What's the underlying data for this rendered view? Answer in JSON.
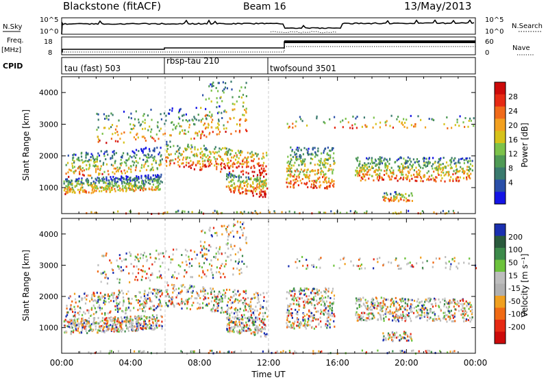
{
  "header": {
    "radar_title": "Blackstone (fitACF)",
    "beam_label": "Beam 16",
    "date_label": "13/May/2013"
  },
  "top_panels": {
    "nsky_label": "N.Sky",
    "nsearch_label": "N.Search",
    "freq_label_1": "Freq.",
    "freq_label_2": "[MHz]",
    "nave_label": "Nave",
    "cpid_label": "CPID",
    "noise_ticks_left": [
      "10^5",
      "10^0"
    ],
    "noise_ticks_right": [
      "10^5",
      "10^0"
    ],
    "freq_ticks": [
      "18",
      "8"
    ],
    "nave_ticks": [
      "60",
      "0"
    ]
  },
  "cpid_segments": [
    {
      "label": "tau (fast) 503",
      "start_hour": 0
    },
    {
      "label": "rbsp-tau 210",
      "start_hour": 6
    },
    {
      "label": "twofsound 3501",
      "start_hour": 12
    }
  ],
  "chart_data": [
    {
      "type": "heatmap",
      "title": "",
      "ylabel": "Slant Range [km]",
      "xlabel": "",
      "x_ticks": [
        "00:00",
        "04:00",
        "08:00",
        "12:00",
        "16:00",
        "20:00",
        "00:00"
      ],
      "y_ticks": [
        1000,
        2000,
        3000,
        4000
      ],
      "ylim": [
        180,
        4500
      ],
      "xlim_hours": [
        0,
        24
      ],
      "colorbar": {
        "label": "Power [dB]",
        "ticks": [
          "4",
          "8",
          "12",
          "16",
          "20",
          "24",
          "28"
        ],
        "colors": [
          "#1414e6",
          "#2a4fa8",
          "#3a7a6e",
          "#4f9a55",
          "#7cc24a",
          "#d6c21a",
          "#f2a020",
          "#f06a1a",
          "#e62a14",
          "#cc0a0a"
        ]
      }
    },
    {
      "type": "heatmap",
      "title": "",
      "ylabel": "Slant Range [km]",
      "xlabel": "Time UT",
      "x_ticks": [
        "00:00",
        "04:00",
        "08:00",
        "12:00",
        "16:00",
        "20:00",
        "00:00"
      ],
      "y_ticks": [
        1000,
        2000,
        3000,
        4000
      ],
      "ylim": [
        180,
        4500
      ],
      "xlim_hours": [
        0,
        24
      ],
      "colorbar": {
        "label": "Velocity [m s⁻¹]",
        "ticks": [
          "200",
          "100",
          "50",
          "15",
          "-15",
          "-50",
          "-100",
          "-200"
        ],
        "colors": [
          "#1a2fb0",
          "#2a5a3c",
          "#3c8a4a",
          "#6cc23c",
          "#bdbdbd",
          "#b0b0b0",
          "#f0a020",
          "#f06a14",
          "#e62a14",
          "#cc0a0a"
        ]
      }
    }
  ]
}
